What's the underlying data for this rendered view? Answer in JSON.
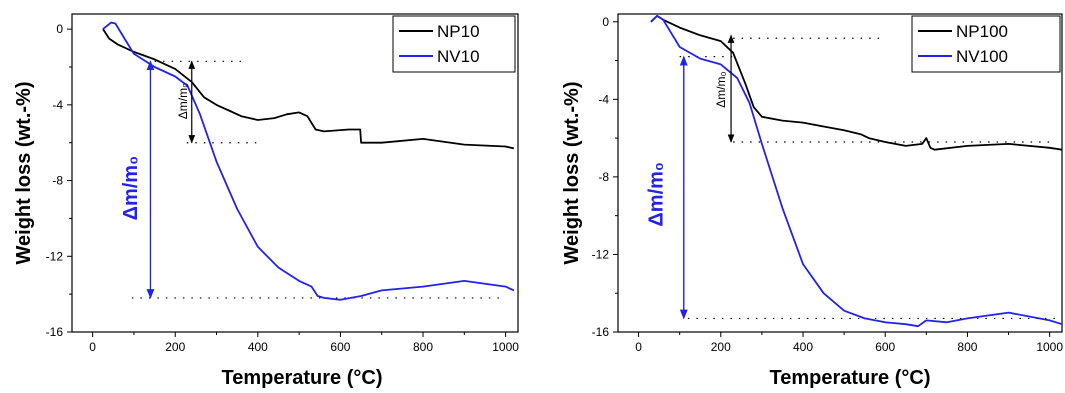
{
  "chart_data": [
    {
      "type": "line",
      "xlabel": "Temperature (°C)",
      "ylabel": "Weight loss (wt.-%)",
      "xlim": [
        -50,
        1030
      ],
      "ylim": [
        -16,
        0.8
      ],
      "xticks": [
        0,
        200,
        400,
        600,
        800,
        1000
      ],
      "yticks": [
        0,
        -4,
        -8,
        -12,
        -16
      ],
      "xtick_labels": [
        "0",
        "200",
        "400",
        "600",
        "800",
        "1000"
      ],
      "ytick_labels": [
        "0",
        "-4",
        "-8",
        "-12",
        "-16"
      ],
      "legend": "top-right",
      "grid": false,
      "series": [
        {
          "name": "NP10",
          "color": "#000000",
          "x": [
            25,
            40,
            60,
            100,
            150,
            200,
            240,
            270,
            300,
            330,
            360,
            400,
            440,
            470,
            500,
            520,
            540,
            560,
            620,
            648,
            650,
            700,
            800,
            900,
            1000,
            1020
          ],
          "y": [
            0,
            -0.5,
            -0.8,
            -1.2,
            -1.6,
            -2.1,
            -2.8,
            -3.6,
            -4.0,
            -4.3,
            -4.6,
            -4.8,
            -4.7,
            -4.5,
            -4.4,
            -4.6,
            -5.3,
            -5.4,
            -5.3,
            -5.3,
            -6.0,
            -6.0,
            -5.8,
            -6.1,
            -6.2,
            -6.3
          ]
        },
        {
          "name": "NV10",
          "color": "#2222ee",
          "x": [
            25,
            45,
            55,
            80,
            100,
            150,
            200,
            230,
            260,
            300,
            350,
            400,
            450,
            500,
            530,
            545,
            560,
            600,
            650,
            700,
            800,
            900,
            1000,
            1020
          ],
          "y": [
            0,
            0.35,
            0.3,
            -0.6,
            -1.3,
            -2.0,
            -2.5,
            -3.0,
            -4.5,
            -7.0,
            -9.5,
            -11.5,
            -12.6,
            -13.3,
            -13.6,
            -14.1,
            -14.2,
            -14.3,
            -14.1,
            -13.8,
            -13.6,
            -13.3,
            -13.6,
            -13.8
          ]
        }
      ],
      "annotations": {
        "small_label": "Δm/m₀",
        "large_label": "Δm/m₀"
      }
    },
    {
      "type": "line",
      "xlabel": "Temperature (°C)",
      "ylabel": "Weight loss (wt.-%)",
      "xlim": [
        -50,
        1030
      ],
      "ylim": [
        -16,
        0.4
      ],
      "xticks": [
        0,
        200,
        400,
        600,
        800,
        1000
      ],
      "yticks": [
        0,
        -4,
        -8,
        -12,
        -16
      ],
      "xtick_labels": [
        "0",
        "200",
        "400",
        "600",
        "800",
        "1000"
      ],
      "ytick_labels": [
        "0",
        "-4",
        "-8",
        "-12",
        "-16"
      ],
      "legend": "top-right",
      "grid": false,
      "series": [
        {
          "name": "NP100",
          "color": "#000000",
          "x": [
            30,
            45,
            60,
            100,
            150,
            200,
            230,
            260,
            280,
            300,
            350,
            400,
            450,
            500,
            540,
            560,
            600,
            650,
            690,
            700,
            710,
            720,
            800,
            900,
            1000,
            1030
          ],
          "y": [
            0,
            0.3,
            0.1,
            -0.3,
            -0.7,
            -1.0,
            -1.6,
            -3.2,
            -4.4,
            -4.9,
            -5.1,
            -5.2,
            -5.4,
            -5.6,
            -5.8,
            -6.0,
            -6.2,
            -6.4,
            -6.3,
            -6.0,
            -6.5,
            -6.6,
            -6.4,
            -6.3,
            -6.5,
            -6.6
          ]
        },
        {
          "name": "NV100",
          "color": "#2222ee",
          "x": [
            30,
            45,
            60,
            100,
            150,
            200,
            240,
            270,
            300,
            350,
            400,
            450,
            500,
            550,
            600,
            650,
            680,
            700,
            750,
            800,
            900,
            1000,
            1030
          ],
          "y": [
            0,
            0.3,
            0.1,
            -1.3,
            -1.9,
            -2.2,
            -2.9,
            -4.2,
            -6.3,
            -9.6,
            -12.5,
            -14.0,
            -14.9,
            -15.3,
            -15.5,
            -15.6,
            -15.7,
            -15.4,
            -15.5,
            -15.3,
            -15.0,
            -15.4,
            -15.6
          ]
        }
      ],
      "annotations": {
        "small_label": "Δm/m₀",
        "large_label": "Δm/m₀"
      }
    }
  ]
}
